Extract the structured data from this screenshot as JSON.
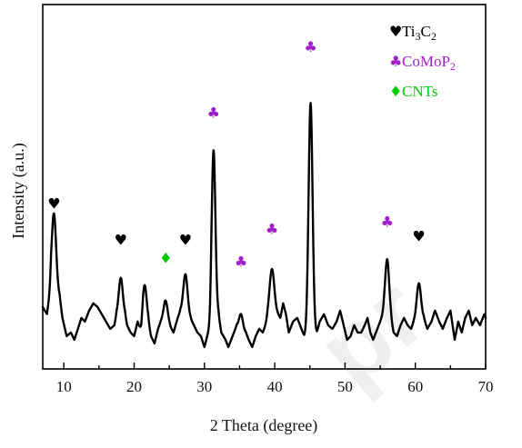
{
  "chart_data": {
    "type": "line",
    "xlabel": "2 Theta (degree)",
    "ylabel": "Intensity (a.u.)",
    "xlim": [
      7,
      70
    ],
    "ylim": [
      0,
      100
    ],
    "xticks": [
      10,
      20,
      30,
      40,
      50,
      60,
      70
    ],
    "yticks_shown": false,
    "grid": false,
    "legend": {
      "placement": "top-right",
      "entries": [
        {
          "symbol": "♥",
          "label_main": "Ti",
          "sub1": "3",
          "label_mid": "C",
          "sub2": "2",
          "color": "#000000"
        },
        {
          "symbol": "♣",
          "label_main": "CoMoP",
          "sub1": "2",
          "label_mid": "",
          "sub2": "",
          "color": "#a020c8"
        },
        {
          "symbol": "♦",
          "label_main": "CNTs",
          "sub1": "",
          "label_mid": "",
          "sub2": "",
          "color": "#00cc00"
        }
      ]
    },
    "baseline": 18,
    "baseline_points": [
      [
        7.0,
        17
      ],
      [
        7.6,
        15
      ],
      [
        8.0,
        20
      ],
      [
        8.2,
        24
      ],
      [
        9.4,
        20
      ],
      [
        9.8,
        14
      ],
      [
        10.4,
        9
      ],
      [
        11.0,
        10
      ],
      [
        11.5,
        8
      ],
      [
        12.0,
        11
      ],
      [
        12.5,
        14
      ],
      [
        13.0,
        13
      ],
      [
        13.6,
        16
      ],
      [
        14.2,
        18
      ],
      [
        14.8,
        17
      ],
      [
        15.4,
        15
      ],
      [
        16.0,
        13
      ],
      [
        16.6,
        11
      ],
      [
        17.2,
        12
      ],
      [
        17.5,
        15
      ],
      [
        18.7,
        15
      ],
      [
        19.0,
        12
      ],
      [
        19.5,
        10
      ],
      [
        20.0,
        9
      ],
      [
        20.5,
        13
      ],
      [
        21.0,
        10
      ],
      [
        21.3,
        13
      ],
      [
        22.0,
        13
      ],
      [
        22.4,
        9
      ],
      [
        22.9,
        7
      ],
      [
        23.4,
        11
      ],
      [
        23.8,
        13
      ],
      [
        24.4,
        14
      ],
      [
        25.0,
        12
      ],
      [
        25.6,
        10
      ],
      [
        26.2,
        14
      ],
      [
        26.6,
        16
      ],
      [
        28.0,
        14
      ],
      [
        28.5,
        12
      ],
      [
        29.0,
        10
      ],
      [
        29.5,
        9
      ],
      [
        30.0,
        6
      ],
      [
        30.4,
        9
      ],
      [
        30.8,
        11
      ],
      [
        31.0,
        15
      ],
      [
        32.0,
        15
      ],
      [
        32.4,
        10
      ],
      [
        33.0,
        8
      ],
      [
        33.4,
        6
      ],
      [
        33.8,
        8
      ],
      [
        34.2,
        10
      ],
      [
        34.6,
        12
      ],
      [
        35.9,
        10
      ],
      [
        36.3,
        8
      ],
      [
        36.8,
        6
      ],
      [
        37.3,
        9
      ],
      [
        37.8,
        11
      ],
      [
        38.3,
        10
      ],
      [
        38.7,
        12
      ],
      [
        39.0,
        14
      ],
      [
        40.4,
        15
      ],
      [
        40.8,
        14
      ],
      [
        41.2,
        18
      ],
      [
        41.6,
        15
      ],
      [
        42.0,
        10
      ],
      [
        42.6,
        13
      ],
      [
        43.2,
        14
      ],
      [
        43.8,
        11
      ],
      [
        44.2,
        9
      ],
      [
        44.6,
        10
      ],
      [
        46.0,
        10
      ],
      [
        46.4,
        13
      ],
      [
        47.0,
        15
      ],
      [
        47.6,
        12
      ],
      [
        48.2,
        11
      ],
      [
        48.8,
        13
      ],
      [
        49.3,
        16
      ],
      [
        49.8,
        12
      ],
      [
        50.3,
        8
      ],
      [
        50.8,
        9
      ],
      [
        51.3,
        12
      ],
      [
        51.8,
        10
      ],
      [
        52.3,
        10
      ],
      [
        52.8,
        12
      ],
      [
        53.2,
        14
      ],
      [
        53.6,
        10
      ],
      [
        54.0,
        8
      ],
      [
        54.6,
        11
      ],
      [
        55.2,
        14
      ],
      [
        55.6,
        16
      ],
      [
        56.5,
        14
      ],
      [
        56.9,
        10
      ],
      [
        57.4,
        9
      ],
      [
        57.9,
        12
      ],
      [
        58.4,
        14
      ],
      [
        58.9,
        12
      ],
      [
        59.4,
        11
      ],
      [
        59.8,
        13
      ],
      [
        61.2,
        14
      ],
      [
        61.7,
        11
      ],
      [
        62.3,
        13
      ],
      [
        62.8,
        16
      ],
      [
        63.4,
        13
      ],
      [
        63.9,
        11
      ],
      [
        64.5,
        14
      ],
      [
        65.0,
        16
      ],
      [
        65.6,
        8
      ],
      [
        66.1,
        13
      ],
      [
        66.6,
        10
      ],
      [
        67.1,
        14
      ],
      [
        67.6,
        16
      ],
      [
        68.1,
        12
      ],
      [
        68.6,
        14
      ],
      [
        69.2,
        12
      ],
      [
        69.8,
        15
      ],
      [
        70.0,
        14
      ]
    ],
    "peaks": [
      {
        "x": 8.6,
        "y": 38,
        "w": 0.3,
        "phase": "Ti3C2"
      },
      {
        "x": 18.1,
        "y": 28,
        "w": 0.28,
        "phase": "Ti3C2"
      },
      {
        "x": 21.5,
        "y": 28,
        "w": 0.28,
        "phase": ""
      },
      {
        "x": 24.5,
        "y": 23,
        "w": 0.3,
        "phase": "CNTs"
      },
      {
        "x": 27.3,
        "y": 29,
        "w": 0.3,
        "phase": "Ti3C2"
      },
      {
        "x": 31.3,
        "y": 63,
        "w": 0.26,
        "phase": "CoMoP2"
      },
      {
        "x": 35.2,
        "y": 22,
        "w": 0.26,
        "phase": "CoMoP2"
      },
      {
        "x": 39.6,
        "y": 31,
        "w": 0.34,
        "phase": "CoMoP2"
      },
      {
        "x": 45.1,
        "y": 81,
        "w": 0.28,
        "phase": "CoMoP2"
      },
      {
        "x": 56.0,
        "y": 33,
        "w": 0.28,
        "phase": "CoMoP2"
      },
      {
        "x": 60.5,
        "y": 28,
        "w": 0.3,
        "phase": "Ti3C2"
      }
    ],
    "markers": [
      {
        "x": 8.6,
        "y": 44,
        "symbol": "♥",
        "phase": "Ti3C2",
        "color": "#000000"
      },
      {
        "x": 18.1,
        "y": 34,
        "symbol": "♥",
        "phase": "Ti3C2",
        "color": "#000000"
      },
      {
        "x": 24.5,
        "y": 29,
        "symbol": "♦",
        "phase": "CNTs",
        "color": "#00cc00"
      },
      {
        "x": 27.3,
        "y": 34,
        "symbol": "♥",
        "phase": "Ti3C2",
        "color": "#000000"
      },
      {
        "x": 31.3,
        "y": 69,
        "symbol": "♣",
        "phase": "CoMoP2",
        "color": "#a020c8"
      },
      {
        "x": 35.2,
        "y": 28,
        "symbol": "♣",
        "phase": "CoMoP2",
        "color": "#a020c8"
      },
      {
        "x": 39.6,
        "y": 37,
        "symbol": "♣",
        "phase": "CoMoP2",
        "color": "#a020c8"
      },
      {
        "x": 45.1,
        "y": 87,
        "symbol": "♣",
        "phase": "CoMoP2",
        "color": "#a020c8"
      },
      {
        "x": 56.0,
        "y": 39,
        "symbol": "♣",
        "phase": "CoMoP2",
        "color": "#a020c8"
      },
      {
        "x": 60.5,
        "y": 35,
        "symbol": "♥",
        "phase": "Ti3C2",
        "color": "#000000"
      }
    ]
  }
}
